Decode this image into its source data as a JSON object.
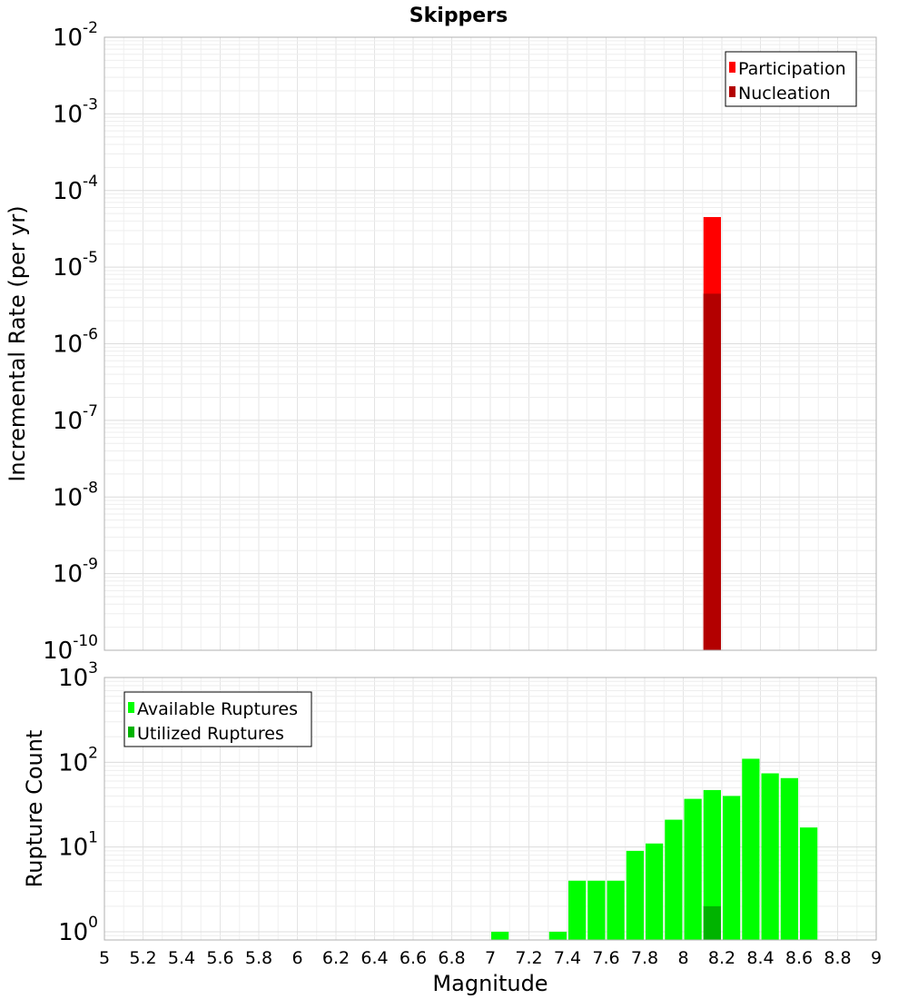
{
  "chart_data": {
    "type": "bar",
    "title": "Skippers",
    "xlabel": "Magnitude",
    "xlim": [
      5,
      9
    ],
    "x_ticks": [
      "5",
      "5.2",
      "5.4",
      "5.6",
      "5.8",
      "6",
      "6.2",
      "6.4",
      "6.6",
      "6.8",
      "7",
      "7.2",
      "7.4",
      "7.6",
      "7.8",
      "8",
      "8.2",
      "8.4",
      "8.6",
      "8.8",
      "9"
    ],
    "bin_width": 0.1,
    "panels": [
      {
        "id": "rate",
        "ylabel": "Incremental Rate (per yr)",
        "yscale": "log",
        "ylim": [
          1e-10,
          0.01
        ],
        "y_tick_exponents": [
          "-10",
          "-9",
          "-8",
          "-7",
          "-6",
          "-5",
          "-4",
          "-3",
          "-2"
        ],
        "y_tick_base": "10",
        "legend_position": "top-right",
        "series": [
          {
            "name": "Participation",
            "color": "#ff0000",
            "x": [
              8.15
            ],
            "values": [
              4.5e-05
            ]
          },
          {
            "name": "Nucleation",
            "color": "#b30000",
            "x": [
              8.15
            ],
            "values": [
              4.5e-06
            ]
          }
        ]
      },
      {
        "id": "count",
        "ylabel": "Rupture Count",
        "yscale": "log",
        "ylim": [
          0.8,
          1000
        ],
        "y_tick_exponents": [
          "0",
          "1",
          "2",
          "3"
        ],
        "y_tick_base": "10",
        "legend_position": "top-left",
        "series": [
          {
            "name": "Available Ruptures",
            "color": "#00ff00",
            "x": [
              7.05,
              7.35,
              7.45,
              7.55,
              7.65,
              7.75,
              7.85,
              7.95,
              8.05,
              8.15,
              8.25,
              8.35,
              8.45,
              8.55,
              8.65
            ],
            "values": [
              1,
              1,
              4,
              4,
              4,
              9,
              11,
              21,
              37,
              47,
              40,
              110,
              74,
              65,
              17
            ]
          },
          {
            "name": "Utilized Ruptures",
            "color": "#00b300",
            "x": [
              8.15
            ],
            "values": [
              2
            ]
          }
        ]
      }
    ]
  }
}
